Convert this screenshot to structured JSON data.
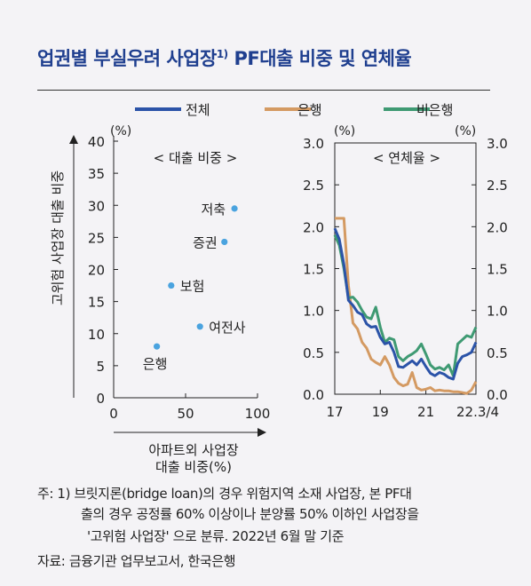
{
  "header": {
    "title": "업권별 부실우려 사업장",
    "title_sup": "1)",
    "title_rest": " PF대출 비중 및 연체율"
  },
  "legend": [
    {
      "label": "전체",
      "color": "#2b53a8"
    },
    {
      "label": "은행",
      "color": "#d49a62"
    },
    {
      "label": "비은행",
      "color": "#3f9a73"
    }
  ],
  "chart_data": [
    {
      "type": "scatter",
      "title": "< 대출 비중 >",
      "unit_label": "(%)",
      "ylabel": "고위험 사업장 대출 비중",
      "xlabel_line1": "아파트외 사업장",
      "xlabel_line2": "대출 비중(%)",
      "xlim": [
        0,
        100
      ],
      "ylim": [
        0,
        40
      ],
      "xticks": [
        "0",
        "50",
        "100"
      ],
      "yticks": [
        "0",
        "5",
        "10",
        "15",
        "20",
        "25",
        "30",
        "35",
        "40"
      ],
      "point_color": "#4aa3df",
      "points": [
        {
          "label": "저축",
          "x": 84,
          "y": 29.5
        },
        {
          "label": "증권",
          "x": 77,
          "y": 24.3
        },
        {
          "label": "보험",
          "x": 40,
          "y": 17.5
        },
        {
          "label": "여전사",
          "x": 60,
          "y": 11.1
        },
        {
          "label": "은행",
          "x": 30,
          "y": 8.0
        }
      ]
    },
    {
      "type": "line",
      "title": "< 연체율 >",
      "unit_label_left": "(%)",
      "unit_label_right": "(%)",
      "ylim": [
        0,
        3.0
      ],
      "yticks": [
        "0.0",
        "0.5",
        "1.0",
        "1.5",
        "2.0",
        "2.5",
        "3.0"
      ],
      "xticks": [
        "17",
        "19",
        "21",
        "22.3/4"
      ],
      "x": [
        0,
        1,
        2,
        3,
        4,
        5,
        6,
        7,
        8,
        9,
        10,
        11,
        12,
        13,
        14,
        15,
        16,
        17,
        18,
        19,
        20,
        21,
        22,
        23,
        24,
        25,
        26,
        27,
        28,
        29,
        30,
        31
      ],
      "series": [
        {
          "name": "전체",
          "color": "#2b53a8",
          "values": [
            1.98,
            1.85,
            1.55,
            1.12,
            1.06,
            0.98,
            0.95,
            0.84,
            0.8,
            0.81,
            0.68,
            0.6,
            0.62,
            0.5,
            0.33,
            0.32,
            0.36,
            0.4,
            0.35,
            0.42,
            0.33,
            0.25,
            0.22,
            0.26,
            0.24,
            0.2,
            0.18,
            0.37,
            0.45,
            0.47,
            0.5,
            0.62
          ]
        },
        {
          "name": "은행",
          "color": "#d49a62",
          "values": [
            2.1,
            2.1,
            2.1,
            1.3,
            0.85,
            0.78,
            0.62,
            0.55,
            0.42,
            0.38,
            0.35,
            0.45,
            0.35,
            0.2,
            0.13,
            0.1,
            0.12,
            0.26,
            0.08,
            0.05,
            0.06,
            0.08,
            0.04,
            0.05,
            0.04,
            0.04,
            0.03,
            0.03,
            0.02,
            0.01,
            0.05,
            0.15
          ]
        },
        {
          "name": "비은행",
          "color": "#3f9a73",
          "values": [
            1.9,
            1.78,
            1.5,
            1.15,
            1.16,
            1.1,
            1.0,
            0.92,
            0.9,
            1.04,
            0.8,
            0.62,
            0.67,
            0.65,
            0.45,
            0.4,
            0.45,
            0.48,
            0.52,
            0.6,
            0.48,
            0.35,
            0.3,
            0.32,
            0.29,
            0.35,
            0.22,
            0.6,
            0.65,
            0.7,
            0.68,
            0.8
          ]
        }
      ]
    }
  ],
  "footnotes": {
    "note_line1": "주: 1) 브릿지론(bridge loan)의 경우 위험지역 소재 사업장, 본 PF대",
    "note_line2": "출의 경우 공정률 60% 이상이나 분양률 50% 이하인 사업장을",
    "note_line3": "'고위험 사업장' 으로 분류. 2022년 6월 말 기준",
    "source": "자료: 금융기관 업무보고서, 한국은행"
  }
}
